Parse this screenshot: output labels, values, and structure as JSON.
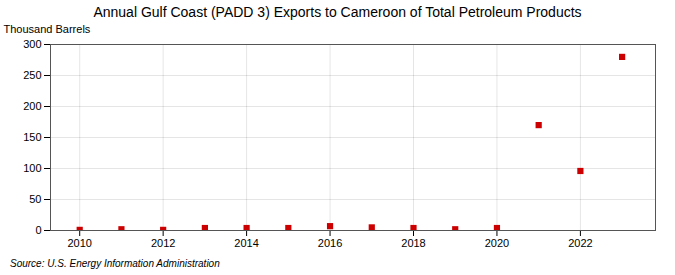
{
  "chart_data": {
    "type": "scatter",
    "title": "Annual Gulf Coast (PADD 3) Exports to Cameroon of Total Petroleum Products",
    "ylabel": "Thousand Barrels",
    "source": "Source: U.S. Energy Information Administration",
    "x": [
      2010,
      2011,
      2012,
      2013,
      2014,
      2015,
      2016,
      2017,
      2018,
      2019,
      2020,
      2021,
      2022,
      2023
    ],
    "values": [
      1,
      2,
      1,
      4,
      4,
      4,
      7,
      5,
      4,
      2,
      4,
      170,
      96,
      280
    ],
    "color": "#cc0000",
    "marker": "square",
    "xlim": [
      2009.3,
      2023.8
    ],
    "xticks": [
      2010,
      2012,
      2014,
      2016,
      2018,
      2020,
      2022
    ],
    "ylim": [
      0,
      300
    ],
    "yticks": [
      0,
      50,
      100,
      150,
      200,
      250,
      300
    ],
    "grid": true
  }
}
